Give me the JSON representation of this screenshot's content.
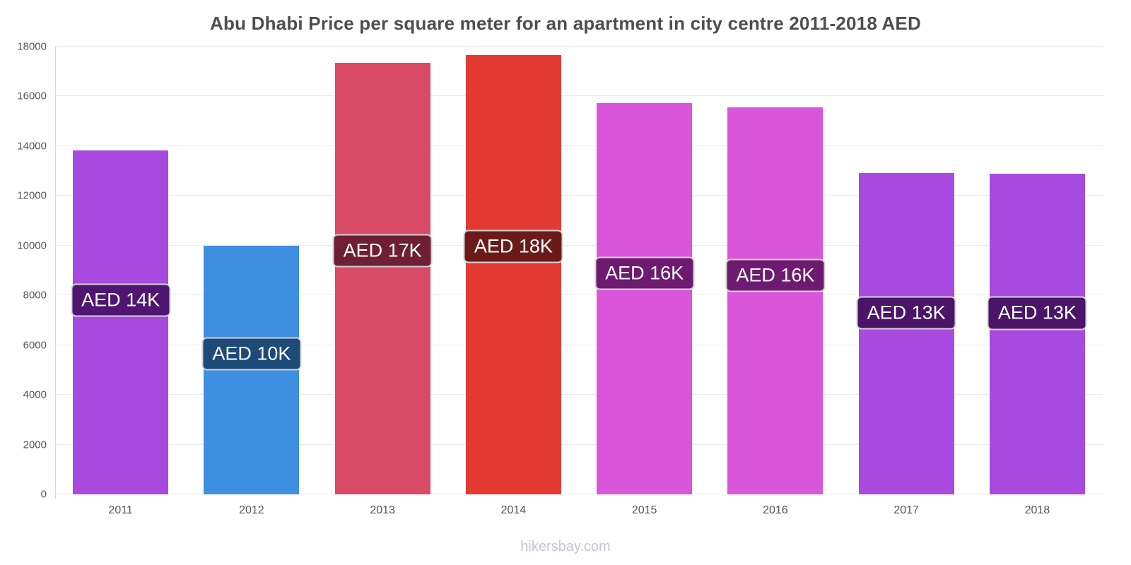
{
  "page": {
    "footer": "hikersbay.com"
  },
  "chart_data": {
    "type": "bar",
    "title": "Abu Dhabi Price per square meter for an apartment in city centre 2011-2018 AED",
    "categories": [
      "2011",
      "2012",
      "2013",
      "2014",
      "2015",
      "2016",
      "2017",
      "2018"
    ],
    "values": [
      13830,
      10000,
      17350,
      17660,
      15730,
      15560,
      12930,
      12890
    ],
    "bar_labels": [
      "AED 14K",
      "AED 10K",
      "AED 17K",
      "AED 18K",
      "AED 16K",
      "AED 16K",
      "AED 13K",
      "AED 13K"
    ],
    "bar_colors": [
      "#a84ae0",
      "#3f8fe0",
      "#d94a67",
      "#e23a33",
      "#d955d9",
      "#d955d9",
      "#a84ae0",
      "#a84ae0"
    ],
    "label_bg_colors": [
      "#4e1670",
      "#1d4a78",
      "#6e1f33",
      "#6b1a1a",
      "#6e1a70",
      "#6e1a70",
      "#4a1567",
      "#4a1567"
    ],
    "xlabel": "",
    "ylabel": "",
    "ylim": [
      0,
      18000
    ],
    "yticks": [
      0,
      2000,
      4000,
      6000,
      8000,
      10000,
      12000,
      14000,
      16000,
      18000
    ],
    "grid": true,
    "legend": false
  }
}
